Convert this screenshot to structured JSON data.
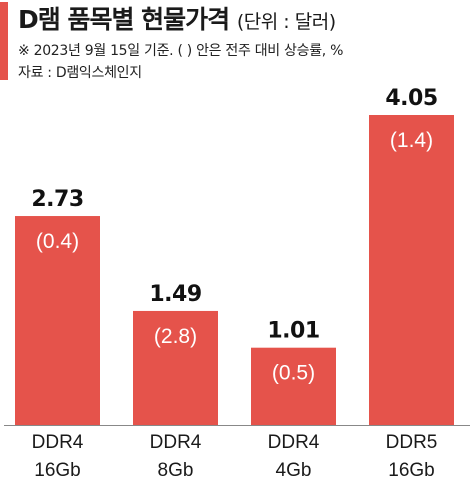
{
  "header": {
    "title": "D램 품목별 현물가격",
    "unit": "(단위 : 달러)",
    "note": "※ 2023년 9월 15일 기준. (   ) 안은 전주 대비 상승률, %",
    "source": "자료 : D램익스체인지"
  },
  "colors": {
    "bar": "#e5534b",
    "accent": "#e5534b",
    "baseline": "#888888"
  },
  "chart_data": {
    "type": "bar",
    "categories": [
      [
        "DDR4",
        "16Gb"
      ],
      [
        "DDR4",
        "8Gb"
      ],
      [
        "DDR4",
        "4Gb"
      ],
      [
        "DDR5",
        "16Gb"
      ]
    ],
    "values": [
      2.73,
      1.49,
      1.01,
      4.05
    ],
    "value_labels": [
      "2.73",
      "1.49",
      "1.01",
      "4.05"
    ],
    "change_labels": [
      "(0.4)",
      "(2.8)",
      "(0.5)",
      "(1.4)"
    ],
    "ylim": [
      0,
      4.05
    ]
  }
}
